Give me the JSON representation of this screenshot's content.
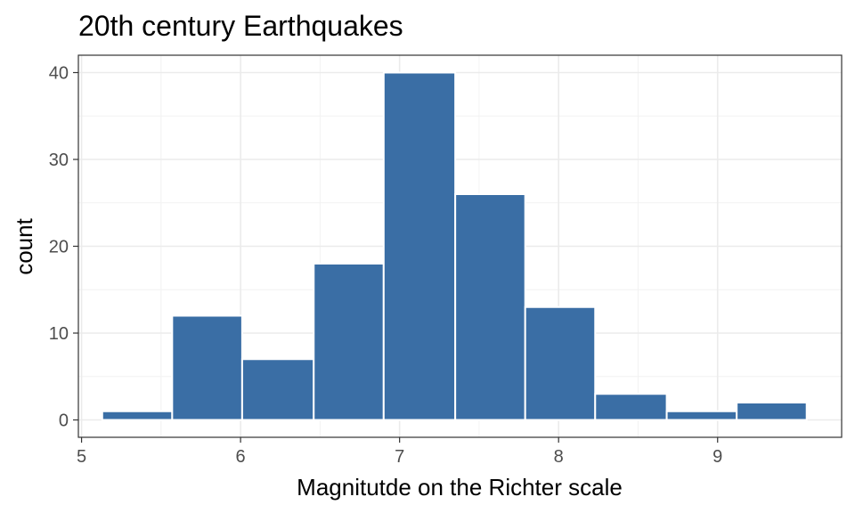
{
  "chart_data": {
    "type": "bar",
    "title": "20th century Earthquakes",
    "xlabel": "Magnitutde on the Richter scale",
    "ylabel": "count",
    "x_bins": [
      {
        "x0": 5.13,
        "x1": 5.57,
        "count": 1
      },
      {
        "x0": 5.57,
        "x1": 6.01,
        "count": 12
      },
      {
        "x0": 6.01,
        "x1": 6.46,
        "count": 7
      },
      {
        "x0": 6.46,
        "x1": 6.9,
        "count": 18
      },
      {
        "x0": 6.9,
        "x1": 7.35,
        "count": 40
      },
      {
        "x0": 7.35,
        "x1": 7.79,
        "count": 26
      },
      {
        "x0": 7.79,
        "x1": 8.23,
        "count": 13
      },
      {
        "x0": 8.23,
        "x1": 8.68,
        "count": 3
      },
      {
        "x0": 8.68,
        "x1": 9.12,
        "count": 1
      },
      {
        "x0": 9.12,
        "x1": 9.56,
        "count": 2
      }
    ],
    "xlim": [
      4.98,
      9.78
    ],
    "ylim": [
      -2,
      42
    ],
    "x_ticks": [
      5,
      6,
      7,
      8,
      9
    ],
    "y_ticks": [
      0,
      10,
      20,
      30,
      40
    ],
    "bar_color": "#3A6EA5",
    "grid": true,
    "legend": "none"
  }
}
